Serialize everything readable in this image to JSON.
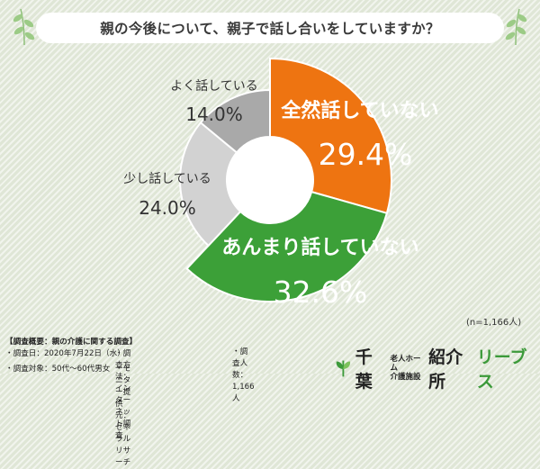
{
  "title": "親の今後について、親子で話し合いをしていますか？",
  "chart_data": {
    "type": "pie",
    "slices": [
      {
        "label": "全然話していない",
        "value": 29.4,
        "value_label": "29.4%",
        "color": "#ee7411",
        "text_color": "#ffffff"
      },
      {
        "label": "あんまり話していない",
        "value": 32.6,
        "value_label": "32.6%",
        "color": "#3ca038",
        "text_color": "#ffffff"
      },
      {
        "label": "少し話している",
        "value": 24.0,
        "value_label": "24.0%",
        "color": "#d2d2d2",
        "text_color": "#333333"
      },
      {
        "label": "よく話している",
        "value": 14.0,
        "value_label": "14.0%",
        "color": "#a9a9a9",
        "text_color": "#333333"
      }
    ]
  },
  "sample_note": "(n=1,166人)",
  "footer": {
    "heading": "【調査概要：親の介護に関する調査】",
    "date": "・調査日：2020年7月22日（水）",
    "method": "・調査方法：インターネット調査",
    "count": "・調査人数：1,166人",
    "target": "・調査対象：50代～60代男女",
    "provider": "・モニター提供元：ゼネラルリサーチ"
  },
  "logo": {
    "part1": "千葉",
    "small_top": "老人ホーム",
    "small_bottom": "介護施設",
    "part2": "紹介所",
    "part3": "リーブス"
  }
}
